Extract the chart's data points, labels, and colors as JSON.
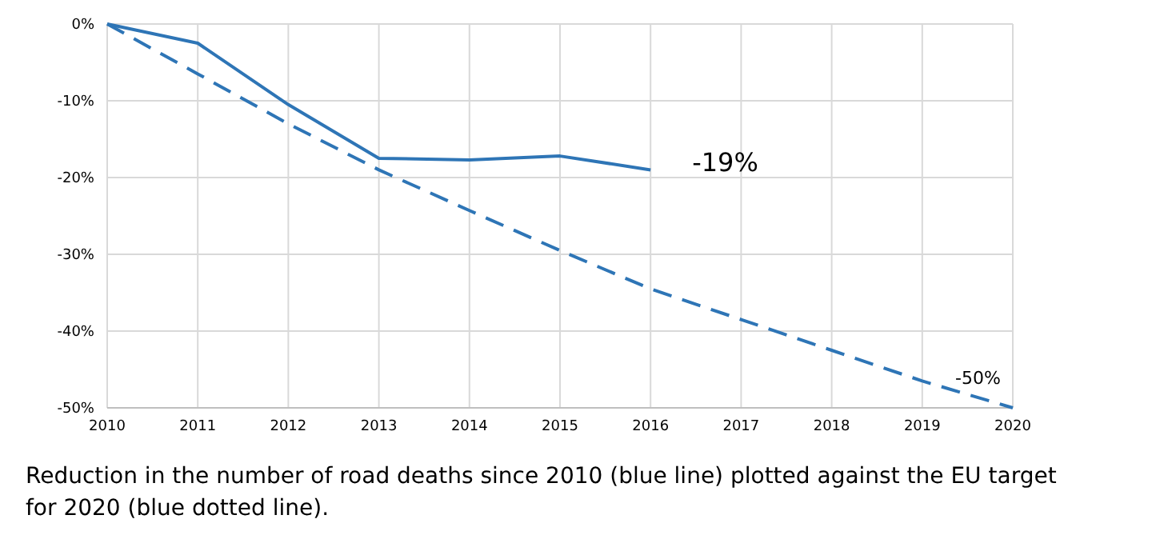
{
  "chart_data": {
    "type": "line",
    "x": [
      2010,
      2011,
      2012,
      2013,
      2014,
      2015,
      2016,
      2017,
      2018,
      2019,
      2020
    ],
    "series": [
      {
        "color": "#2e75b6",
        "line_style": "solid",
        "x": [
          2010,
          2011,
          2012,
          2013,
          2014,
          2015,
          2016
        ],
        "values": [
          0,
          -2.5,
          -10.5,
          -17.5,
          -17.7,
          -17.2,
          -19
        ]
      },
      {
        "color": "#2e75b6",
        "line_style": "dashed",
        "values": [
          0,
          -6.5,
          -13,
          -19,
          -24.3,
          -29.5,
          -34.5,
          -38.5,
          -42.5,
          -46.5,
          -50
        ]
      }
    ],
    "xlim": [
      2010,
      2020
    ],
    "xticks": [
      2010,
      2011,
      2012,
      2013,
      2014,
      2015,
      2016,
      2017,
      2018,
      2019,
      2020
    ],
    "ylim": [
      -50,
      0
    ],
    "yticks": [
      {
        "value": -50,
        "label": "-50%"
      },
      {
        "value": -40,
        "label": "-40%"
      },
      {
        "value": -30,
        "label": "-30%"
      },
      {
        "value": -20,
        "label": "-20%"
      },
      {
        "value": -10,
        "label": "-10%"
      },
      {
        "value": 0,
        "label": "0%"
      }
    ],
    "grid": true,
    "marker": "none",
    "annotations": [
      {
        "text": "-19%",
        "x": 2016,
        "y": -19
      },
      {
        "text": "-50%",
        "x": 2020,
        "y": -50
      },
      "Reduction in the number of road deaths since 2010 (blue line) plotted against the EU target for 2020 (blue dotted line)."
    ]
  }
}
